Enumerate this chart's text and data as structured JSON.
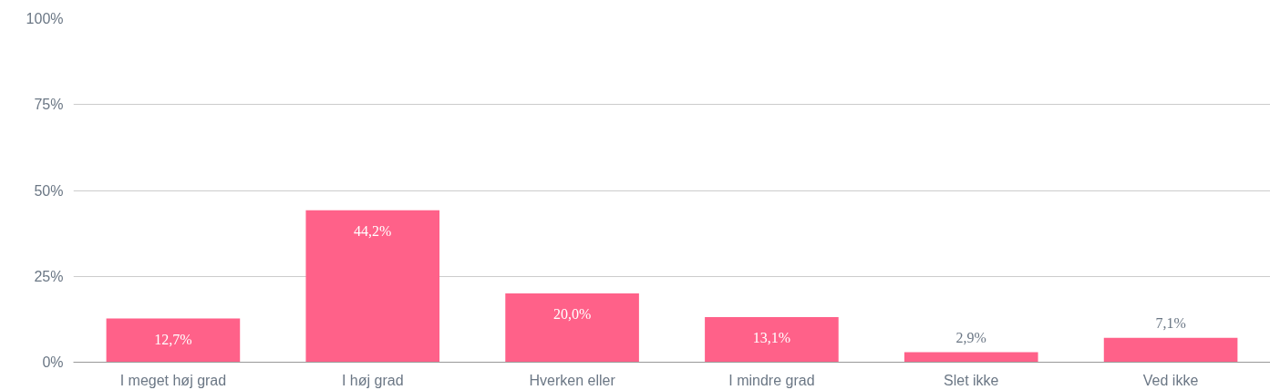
{
  "chart_data": {
    "type": "bar",
    "categories": [
      "I meget høj grad",
      "I høj grad",
      "Hverken eller",
      "I mindre grad",
      "Slet ikke",
      "Ved ikke"
    ],
    "values": [
      12.7,
      44.2,
      20.0,
      13.1,
      2.9,
      7.1
    ],
    "value_labels": [
      "12,7%",
      "44,2%",
      "20,0%",
      "13,1%",
      "2,9%",
      "7,1%"
    ],
    "color": "#ff6189",
    "ylim": [
      0,
      100
    ],
    "yticks": [
      {
        "value": 0,
        "label": "0%"
      },
      {
        "value": 25,
        "label": "25%"
      },
      {
        "value": 50,
        "label": "50%"
      },
      {
        "value": 75,
        "label": "75%"
      },
      {
        "value": 100,
        "label": "100%"
      }
    ],
    "grid": "y"
  }
}
